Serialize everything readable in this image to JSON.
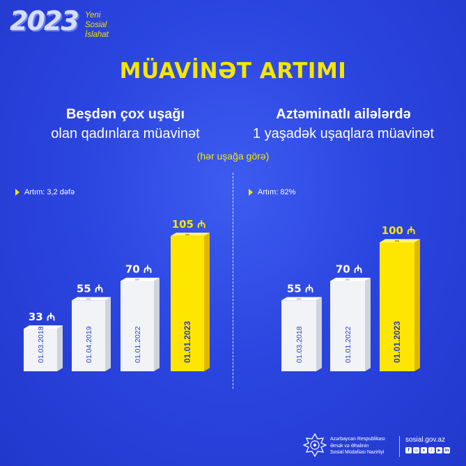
{
  "brand": {
    "year": "2023",
    "line1": "Yeni",
    "line2": "Sosial",
    "line3": "İslahat"
  },
  "title": "MÜAVİNƏT ARTIMI",
  "left_panel": {
    "subtitle_line1": "Beşdən çox uşağı",
    "subtitle_line2": "olan qadınlara müavinət",
    "growth": "Artım: 3,2 dəfə"
  },
  "right_panel": {
    "subtitle_line1": "Aztəminatlı ailələrdə",
    "subtitle_line2": "1 yaşadək uşaqlara müavinət",
    "growth": "Artım: 82%"
  },
  "note": "(hər uşağa görə)",
  "currency": "₼",
  "colors": {
    "background": "#2b45e0",
    "accent_yellow": "#f5e600",
    "bar_white": "#f1f3f6",
    "bar_highlight": "#ffe600",
    "date_text": "#3048c8"
  },
  "chart_data": [
    {
      "type": "bar",
      "title": "Beşdən çox uşağı olan qadınlara müavinət",
      "categories": [
        "01.03.2018",
        "01.04.2019",
        "01.01.2022",
        "01.01.2023"
      ],
      "values": [
        33,
        55,
        70,
        105
      ],
      "value_labels": [
        "33",
        "55",
        "70",
        "105"
      ],
      "unit": "₼",
      "highlight": "01.01.2023",
      "annotation": "Artım: 3,2 dəfə"
    },
    {
      "type": "bar",
      "title": "Aztəminatlı ailələrdə 1 yaşadək uşaqlara müavinət",
      "categories": [
        "01.03.2018",
        "01.01.2022",
        "01.01.2023"
      ],
      "values": [
        55,
        70,
        100
      ],
      "value_labels": [
        "55",
        "70",
        "100"
      ],
      "unit": "₼",
      "highlight": "01.01.2023",
      "annotation": "Artım: 82%"
    }
  ],
  "footer": {
    "ministry_line1": "Azərbaycan Respublikası",
    "ministry_line2": "Əmək və Əhalinin",
    "ministry_line3": "Sosial Müdafiəsi Nazirliyi",
    "website": "sosial.gov.az",
    "social_icons": [
      "facebook-icon",
      "instagram-icon",
      "telegram-icon",
      "tiktok-icon",
      "youtube-icon",
      "linkedin-icon"
    ]
  }
}
